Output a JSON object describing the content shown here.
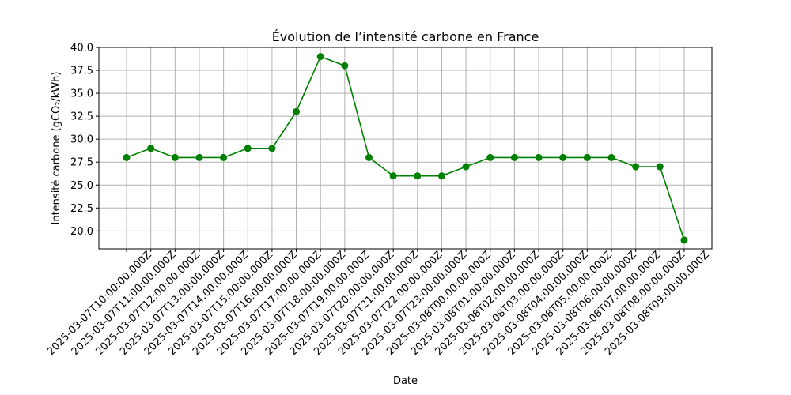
{
  "chart_data": {
    "type": "line",
    "title": "Évolution de l’intensité carbone en France",
    "xlabel": "Date",
    "ylabel": "Intensité carbone (gCO₂/kWh)",
    "x": [
      "2025-03-07T10:00:00.000Z",
      "2025-03-07T11:00:00.000Z",
      "2025-03-07T12:00:00.000Z",
      "2025-03-07T13:00:00.000Z",
      "2025-03-07T14:00:00.000Z",
      "2025-03-07T15:00:00.000Z",
      "2025-03-07T16:00:00.000Z",
      "2025-03-07T17:00:00.000Z",
      "2025-03-07T18:00:00.000Z",
      "2025-03-07T19:00:00.000Z",
      "2025-03-07T20:00:00.000Z",
      "2025-03-07T21:00:00.000Z",
      "2025-03-07T22:00:00.000Z",
      "2025-03-07T23:00:00.000Z",
      "2025-03-08T00:00:00.000Z",
      "2025-03-08T01:00:00.000Z",
      "2025-03-08T02:00:00.000Z",
      "2025-03-08T03:00:00.000Z",
      "2025-03-08T04:00:00.000Z",
      "2025-03-08T05:00:00.000Z",
      "2025-03-08T06:00:00.000Z",
      "2025-03-08T07:00:00.000Z",
      "2025-03-08T08:00:00.000Z",
      "2025-03-08T09:00:00.000Z"
    ],
    "series": [
      {
        "values": [
          28,
          29,
          28,
          28,
          28,
          29,
          29,
          33,
          39,
          38,
          28,
          26,
          26,
          26,
          27,
          28,
          28,
          28,
          28,
          28,
          28,
          27,
          27,
          19
        ],
        "color": "#008000",
        "marker": "circle"
      }
    ],
    "ylim": [
      18.05,
      40.0
    ],
    "yticks": [
      "20.0",
      "22.5",
      "25.0",
      "27.5",
      "30.0",
      "32.5",
      "35.0",
      "37.5",
      "40.0"
    ],
    "grid": true,
    "legend": "none"
  }
}
